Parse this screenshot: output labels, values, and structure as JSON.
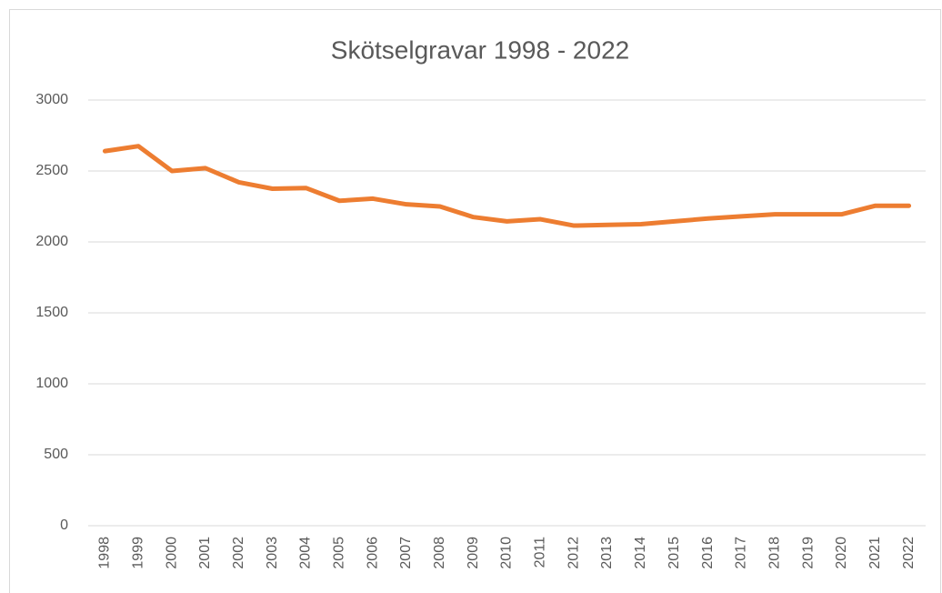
{
  "chart_data": {
    "type": "line",
    "title": "Skötselgravar 1998 - 2022",
    "categories": [
      "1998",
      "1999",
      "2000",
      "2001",
      "2002",
      "2003",
      "2004",
      "2005",
      "2006",
      "2007",
      "2008",
      "2009",
      "2010",
      "2011",
      "2012",
      "2013",
      "2014",
      "2015",
      "2016",
      "2017",
      "2018",
      "2019",
      "2020",
      "2021",
      "2022"
    ],
    "series": [
      {
        "name": "Skötselgravar",
        "color": "#ed7d31",
        "values": [
          2640,
          2675,
          2500,
          2520,
          2420,
          2375,
          2380,
          2290,
          2305,
          2265,
          2250,
          2175,
          2145,
          2160,
          2115,
          2120,
          2125,
          2145,
          2165,
          2180,
          2195,
          2195,
          2195,
          2255,
          2255
        ]
      }
    ],
    "ylim": [
      0,
      3000
    ],
    "yticks": [
      0,
      500,
      1000,
      1500,
      2000,
      2500,
      3000
    ],
    "grid": true
  }
}
